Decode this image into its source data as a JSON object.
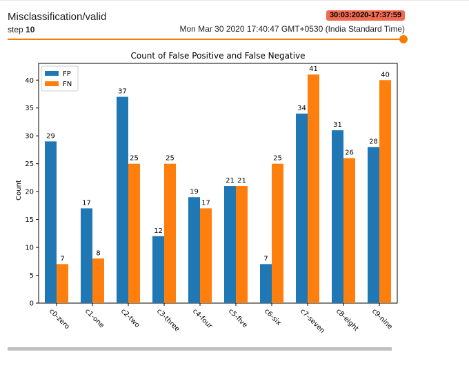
{
  "header": {
    "title": "Misclassification/valid",
    "step_label": "step",
    "step_value": "10",
    "run_badge": "30:03:2020-17:37:59",
    "timestamp": "Mon Mar 30 2020 17:40:47 GMT+0530 (India Standard Time)"
  },
  "colors": {
    "fp": "#1f77b4",
    "fn": "#ff7f0e",
    "accent": "#f57c00",
    "badge": "#ef6b51"
  },
  "chart_data": {
    "type": "bar",
    "title": "Count of False Positive and False Negative",
    "ylabel": "Count",
    "xlabel": "",
    "ylim": [
      0,
      43
    ],
    "yticks": [
      0,
      5,
      10,
      15,
      20,
      25,
      30,
      35,
      40
    ],
    "categories": [
      "c0-zero",
      "c1-one",
      "c2-two",
      "c3-three",
      "c4-four",
      "c5-five",
      "c6-six",
      "c7-seven",
      "c8-eight",
      "c9-nine"
    ],
    "series": [
      {
        "name": "FP",
        "values": [
          29,
          17,
          37,
          12,
          19,
          21,
          7,
          34,
          31,
          28
        ]
      },
      {
        "name": "FN",
        "values": [
          7,
          8,
          25,
          25,
          17,
          21,
          25,
          41,
          26,
          40
        ]
      }
    ],
    "legend": "top-left",
    "grid": false
  }
}
